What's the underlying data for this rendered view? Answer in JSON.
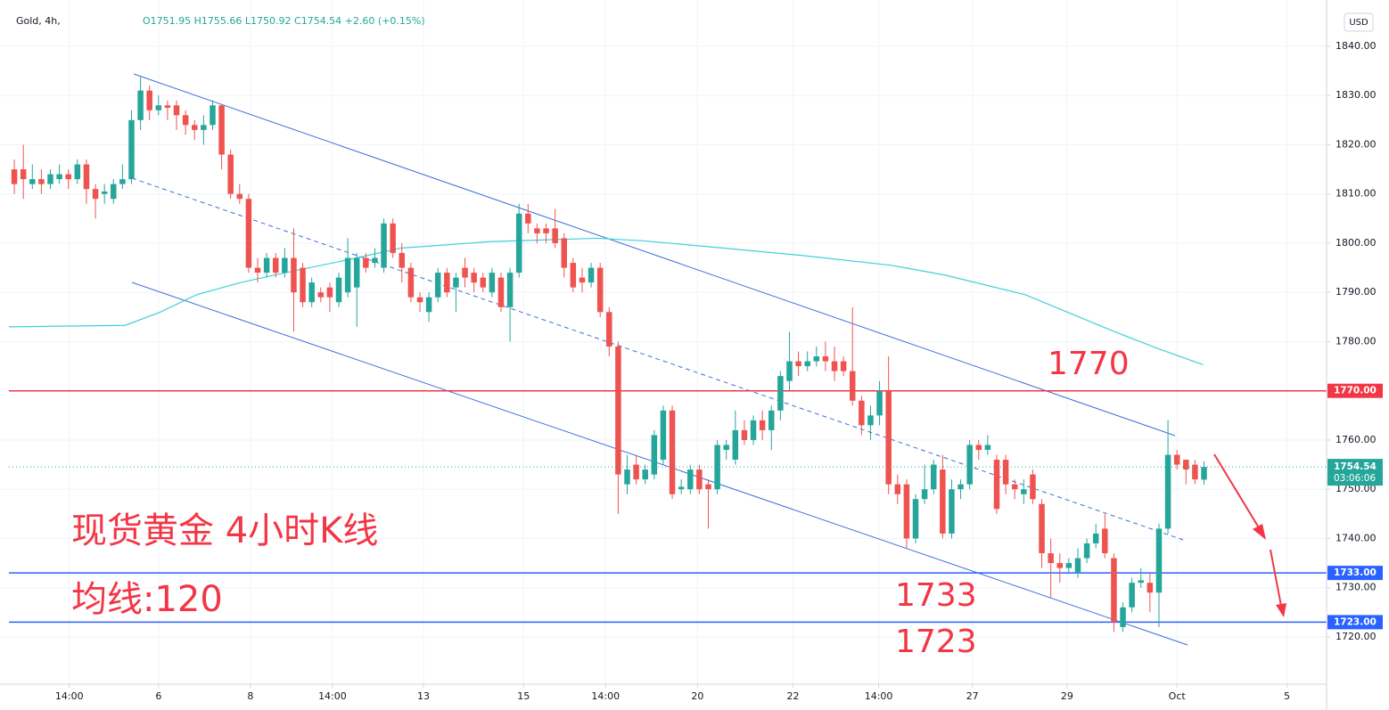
{
  "chart_data": {
    "type": "candlestick",
    "symbol": "Gold, 4h,",
    "ohlc_text": "O1751.95 H1755.66 L1750.92 C1754.54 +2.60 (+0.15%)",
    "currency": "USD",
    "notes": [
      "现货黄金 4小时K线",
      "均线:120"
    ],
    "annotations": [
      "1770",
      "1733",
      "1723"
    ],
    "up_color": "#26a69a",
    "down_color": "#ef5350",
    "open": [
      1815,
      1815,
      1812,
      1813,
      1812,
      1813,
      1814,
      1813,
      1816,
      1811,
      1810,
      1809,
      1812,
      1813,
      1825,
      1831,
      1827,
      1828,
      1828,
      1826,
      1824,
      1823,
      1824,
      1828,
      1818,
      1810,
      1809,
      1795,
      1794,
      1797,
      1794,
      1797,
      1795,
      1788,
      1790,
      1791,
      1788,
      1790,
      1791,
      1797,
      1796,
      1795,
      1804,
      1798,
      1795,
      1789,
      1786,
      1789,
      1794,
      1791,
      1795,
      1794,
      1793,
      1790,
      1793,
      1787,
      1794,
      1806,
      1803,
      1803,
      1803,
      1801,
      1796,
      1793,
      1792,
      1795,
      1786,
      1779,
      1751,
      1755,
      1752,
      1753,
      1756,
      1766,
      1750,
      1750,
      1754,
      1751,
      1750,
      1758,
      1756,
      1762,
      1760,
      1764,
      1762,
      1766,
      1772,
      1776,
      1775,
      1776,
      1777,
      1776,
      1776,
      1774,
      1768,
      1763,
      1765,
      1770,
      1751,
      1751,
      1740,
      1748,
      1750,
      1754,
      1741,
      1750,
      1751,
      1759,
      1758,
      1756,
      1756,
      1751,
      1749,
      1753,
      1747,
      1737,
      1735,
      1734,
      1733,
      1736,
      1739,
      1742,
      1736,
      1722,
      1726,
      1731,
      1731,
      1729,
      1742,
      1757,
      1756,
      1755,
      1751.95
    ],
    "high": [
      1817,
      1820,
      1816,
      1815,
      1815,
      1816,
      1815,
      1817,
      1817,
      1812,
      1812,
      1813,
      1816,
      1827,
      1834,
      1832,
      1830,
      1829,
      1829,
      1827,
      1825,
      1826,
      1829,
      1828,
      1819,
      1812,
      1810,
      1797,
      1798,
      1798,
      1799,
      1803,
      1796,
      1793,
      1791,
      1792,
      1794,
      1801,
      1798,
      1798,
      1799,
      1805,
      1805,
      1800,
      1796,
      1790,
      1790,
      1795,
      1795,
      1794,
      1797,
      1795,
      1794,
      1795,
      1794,
      1795,
      1808,
      1808,
      1804,
      1804,
      1807,
      1802,
      1797,
      1795,
      1796,
      1796,
      1787,
      1780,
      1757,
      1757,
      1755,
      1762,
      1767,
      1767,
      1752,
      1755,
      1755,
      1752,
      1760,
      1760,
      1766,
      1764,
      1765,
      1766,
      1767,
      1774,
      1782,
      1778,
      1778,
      1779,
      1780,
      1779,
      1777,
      1787,
      1769,
      1767,
      1772,
      1777,
      1753,
      1752,
      1749,
      1755,
      1756,
      1757,
      1752,
      1752,
      1760,
      1760,
      1761,
      1757,
      1757,
      1752,
      1752,
      1754,
      1748,
      1740,
      1737,
      1736,
      1738,
      1740,
      1743,
      1745,
      1737,
      1727,
      1732,
      1734,
      1733,
      1743,
      1764,
      1758,
      1756,
      1756,
      1755.66
    ],
    "low": [
      1810,
      1809,
      1811,
      1810,
      1811,
      1812,
      1811,
      1812,
      1808,
      1805,
      1808,
      1808,
      1811,
      1812,
      1823,
      1825,
      1826,
      1825,
      1823,
      1822,
      1821,
      1820,
      1823,
      1815,
      1809,
      1808,
      1794,
      1792,
      1793,
      1793,
      1793,
      1782,
      1787,
      1787,
      1788,
      1786,
      1787,
      1789,
      1783,
      1794,
      1795,
      1794,
      1797,
      1792,
      1788,
      1786,
      1784,
      1788,
      1789,
      1786,
      1791,
      1790,
      1790,
      1789,
      1786,
      1780,
      1793,
      1802,
      1800,
      1800,
      1799,
      1793,
      1790,
      1790,
      1791,
      1785,
      1777,
      1745,
      1749,
      1751,
      1751,
      1752,
      1755,
      1748,
      1749,
      1749,
      1749,
      1742,
      1749,
      1756,
      1755,
      1759,
      1759,
      1760,
      1758,
      1764,
      1770,
      1773,
      1774,
      1775,
      1774,
      1772,
      1773,
      1767,
      1761,
      1760,
      1763,
      1749,
      1747,
      1738,
      1739,
      1747,
      1749,
      1740,
      1740,
      1748,
      1750,
      1756,
      1757,
      1745,
      1749,
      1748,
      1747,
      1747,
      1734,
      1728,
      1731,
      1733,
      1732,
      1735,
      1738,
      1736,
      1721,
      1721,
      1725,
      1730,
      1725,
      1722,
      1741,
      1754,
      1751,
      1751,
      1750.92
    ],
    "close": [
      1812,
      1813,
      1813,
      1812,
      1814,
      1814,
      1813,
      1816,
      1811,
      1809,
      1810.5,
      1812,
      1813,
      1825,
      1831,
      1827,
      1828,
      1827.5,
      1826,
      1824,
      1823,
      1824,
      1828,
      1818,
      1810,
      1809,
      1795,
      1794,
      1797,
      1794,
      1797,
      1790,
      1788,
      1792,
      1789,
      1789,
      1793,
      1797,
      1797,
      1795,
      1797,
      1804,
      1798,
      1795,
      1789,
      1788,
      1789,
      1794,
      1790,
      1793,
      1793,
      1792,
      1791,
      1794,
      1787,
      1794,
      1806,
      1804,
      1802,
      1802,
      1800,
      1795,
      1791,
      1792,
      1795,
      1786,
      1779,
      1753,
      1754,
      1752,
      1754,
      1761,
      1766,
      1749,
      1750.5,
      1754,
      1750,
      1750,
      1759,
      1759,
      1762,
      1760,
      1764,
      1762,
      1766,
      1773,
      1776,
      1775,
      1776,
      1777,
      1776,
      1774,
      1774,
      1768,
      1763,
      1765,
      1770,
      1751,
      1749,
      1740,
      1748,
      1750,
      1755,
      1741,
      1750,
      1751,
      1759,
      1758,
      1759,
      1746,
      1751,
      1750,
      1750,
      1748,
      1737,
      1735,
      1734,
      1735,
      1736,
      1739,
      1741,
      1737,
      1723,
      1726,
      1731,
      1731.5,
      1729,
      1742,
      1757,
      1755,
      1754,
      1752,
      1754.54
    ],
    "ma": {
      "name": "MA 120",
      "color": "#3dd1d9",
      "x": [
        -0.6,
        12.3,
        16.2,
        20.2,
        25.1,
        30.1,
        38,
        42.9,
        52.8,
        64.7,
        69.6,
        77.5,
        87.4,
        97.3,
        103.3,
        112.2,
        122.1,
        127,
        131.9
      ],
      "values": [
        1783,
        1783.3,
        1786,
        1789.5,
        1792,
        1794,
        1797,
        1799,
        1800.3,
        1801,
        1800.5,
        1799.2,
        1797.5,
        1795.5,
        1793.5,
        1789.5,
        1782,
        1778.5,
        1775.3
      ]
    },
    "levels": [
      {
        "value": 1770,
        "label": "1770.00",
        "color": "#f23645"
      },
      {
        "value": 1733,
        "label": "1733.00",
        "color": "#2962ff"
      },
      {
        "value": 1723,
        "label": "1723.00",
        "color": "#2962ff"
      }
    ],
    "last": {
      "value": 1754.54,
      "countdown": "03:06:06",
      "color": "#26a69a"
    },
    "xlim": [
      -0.6,
      145.6
    ],
    "xticks": [
      {
        "value": 6.1,
        "label": "14:00"
      },
      {
        "value": 16,
        "label": "6"
      },
      {
        "value": 26.2,
        "label": "8"
      },
      {
        "value": 35.3,
        "label": "14:00"
      },
      {
        "value": 45.4,
        "label": "13"
      },
      {
        "value": 56.5,
        "label": "15"
      },
      {
        "value": 65.6,
        "label": "14:00"
      },
      {
        "value": 75.8,
        "label": "20"
      },
      {
        "value": 86.4,
        "label": "22"
      },
      {
        "value": 95.9,
        "label": "14:00"
      },
      {
        "value": 106.3,
        "label": "27"
      },
      {
        "value": 116.8,
        "label": "29"
      },
      {
        "value": 129,
        "label": "Oct"
      },
      {
        "value": 141.2,
        "label": "5"
      }
    ],
    "ylim": [
      1710.4,
      1849.4
    ],
    "yticks": [
      {
        "value": 1720,
        "label": "1720.00"
      },
      {
        "value": 1730,
        "label": "1730.00"
      },
      {
        "value": 1740,
        "label": "1740.00"
      },
      {
        "value": 1750,
        "label": "1750.00"
      },
      {
        "value": 1760,
        "label": "1760.00"
      },
      {
        "value": 1770,
        "label": "1770.00"
      },
      {
        "value": 1780,
        "label": "1780.00"
      },
      {
        "value": 1790,
        "label": "1790.00"
      },
      {
        "value": 1800,
        "label": "1800.00"
      },
      {
        "value": 1810,
        "label": "1810.00"
      },
      {
        "value": 1820,
        "label": "1820.00"
      },
      {
        "value": 1830,
        "label": "1830.00"
      },
      {
        "value": 1840,
        "label": "1840.00"
      }
    ],
    "grid": true
  }
}
